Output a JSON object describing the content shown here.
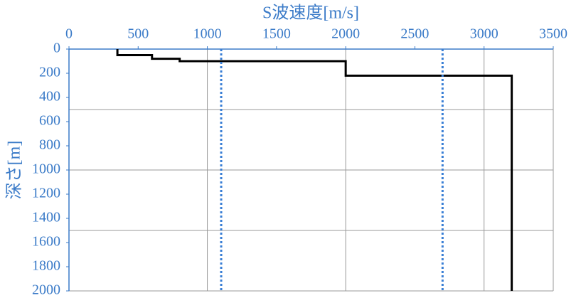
{
  "chart_data": {
    "type": "line",
    "x_label": "S波速度[m/s]",
    "y_label": "深さ[m]",
    "xlim": [
      0,
      3500
    ],
    "xticks": [
      0,
      500,
      1000,
      1500,
      2000,
      2500,
      3000,
      3500
    ],
    "ylim": [
      0,
      2000
    ],
    "yticks": [
      0,
      200,
      400,
      600,
      800,
      1000,
      1200,
      1400,
      1600,
      1800,
      2000
    ],
    "y_inverted": true,
    "x_axis_position": "top",
    "xgrid": [
      1000,
      2000,
      3000
    ],
    "ygrid": [
      500,
      1000,
      1500
    ],
    "series": [
      {
        "color": "#000000",
        "dashed": false,
        "x": [
          350,
          350,
          600,
          600,
          800,
          800,
          2000,
          2000,
          3200,
          3200
        ],
        "values": [
          0,
          50,
          50,
          80,
          80,
          100,
          100,
          220,
          220,
          2000
        ]
      },
      {
        "color": "#3a7fd5",
        "dashed": true,
        "x": [
          1100,
          1100
        ],
        "values": [
          0,
          2000
        ]
      },
      {
        "color": "#3a7fd5",
        "dashed": true,
        "x": [
          2700,
          2700
        ],
        "values": [
          0,
          2000
        ]
      }
    ]
  }
}
